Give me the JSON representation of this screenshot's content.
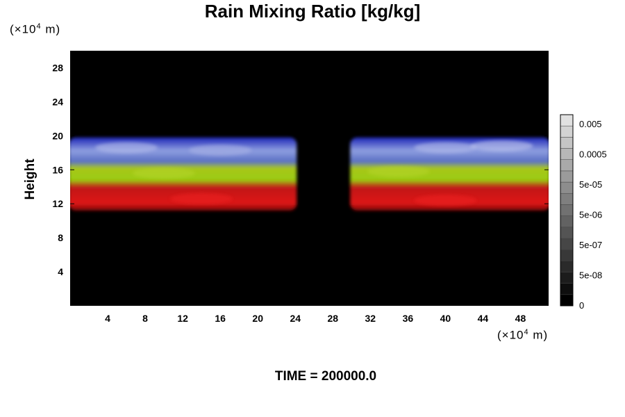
{
  "chart_data": {
    "type": "heatmap",
    "title": "Rain Mixing Ratio [kg/kg]",
    "ylabel": "Height",
    "xlabel": "",
    "x_unit": {
      "prefix": "(×10",
      "exp": "4",
      "suffix": " m)"
    },
    "y_unit": {
      "prefix": "(×10",
      "exp": "4",
      "suffix": " m)"
    },
    "xlim": [
      0,
      51
    ],
    "ylim": [
      0,
      30
    ],
    "x_ticks": [
      4,
      8,
      12,
      16,
      20,
      24,
      28,
      32,
      36,
      40,
      44,
      48
    ],
    "y_ticks": [
      4,
      8,
      12,
      16,
      20,
      24,
      28
    ],
    "background_color": "#000000",
    "colorbar": {
      "labels": [
        "0.005",
        "0.0005",
        "5e-05",
        "5e-06",
        "5e-07",
        "5e-08",
        "0"
      ],
      "levels": 17
    },
    "bands": [
      {
        "name": "upper",
        "color": "#8f9fe0",
        "y_range": [
          17.5,
          19.8
        ]
      },
      {
        "name": "middle",
        "color": "#9acc10",
        "y_range": [
          14.2,
          17.5
        ]
      },
      {
        "name": "lower",
        "color": "#dd1515",
        "y_range": [
          11.2,
          14.2
        ]
      }
    ],
    "gap_x_range": [
      24,
      30
    ],
    "annotation": "TIME = 200000.0"
  }
}
